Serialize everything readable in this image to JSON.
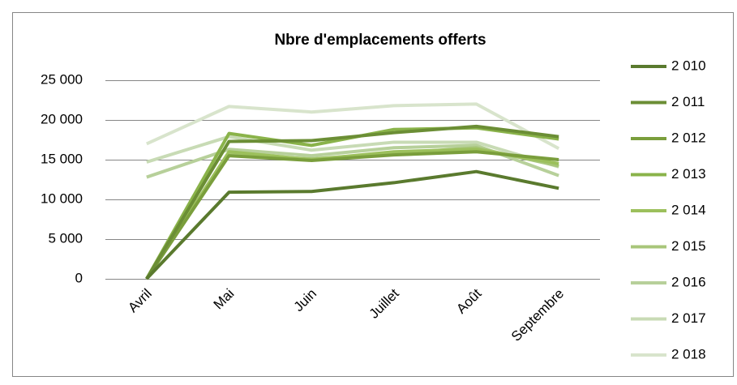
{
  "chart_data": {
    "type": "line",
    "title": "Nbre d'emplacements offerts",
    "categories": [
      "Avril",
      "Mai",
      "Juin",
      "Juillet",
      "Août",
      "Septembre"
    ],
    "series": [
      {
        "name": "2 010",
        "color": "#5a7a2e",
        "values": [
          0,
          10900,
          11000,
          12100,
          13500,
          11400
        ]
      },
      {
        "name": "2 011",
        "color": "#6b8e35",
        "values": [
          0,
          17300,
          17400,
          18400,
          19200,
          17900
        ]
      },
      {
        "name": "2 012",
        "color": "#7a9e3c",
        "values": [
          0,
          15500,
          14900,
          15600,
          16000,
          15000
        ]
      },
      {
        "name": "2 013",
        "color": "#8ab34a",
        "values": [
          0,
          18300,
          16800,
          18800,
          19000,
          17600
        ]
      },
      {
        "name": "2 014",
        "color": "#9cc05c",
        "values": [
          0,
          16000,
          15000,
          16000,
          16300,
          14500
        ]
      },
      {
        "name": "2 015",
        "color": "#a8c67a",
        "values": [
          0,
          15600,
          15100,
          15800,
          16500,
          14200
        ]
      },
      {
        "name": "2 016",
        "color": "#b7d09a",
        "values": [
          12800,
          16300,
          15500,
          16500,
          16800,
          13000
        ]
      },
      {
        "name": "2 017",
        "color": "#c8dbb5",
        "values": [
          14700,
          17900,
          16200,
          17200,
          17200,
          14100
        ]
      },
      {
        "name": "2 018",
        "color": "#d8e4cc",
        "values": [
          17000,
          21700,
          21000,
          21800,
          22000,
          16400
        ]
      }
    ],
    "ylim": [
      0,
      25000
    ],
    "yticks": [
      {
        "value": 0,
        "label": "0"
      },
      {
        "value": 5000,
        "label": "5 000"
      },
      {
        "value": 10000,
        "label": "10 000"
      },
      {
        "value": 15000,
        "label": "15 000"
      },
      {
        "value": 20000,
        "label": "20 000"
      },
      {
        "value": 25000,
        "label": "25 000"
      }
    ],
    "grid": true,
    "legend": "right"
  }
}
